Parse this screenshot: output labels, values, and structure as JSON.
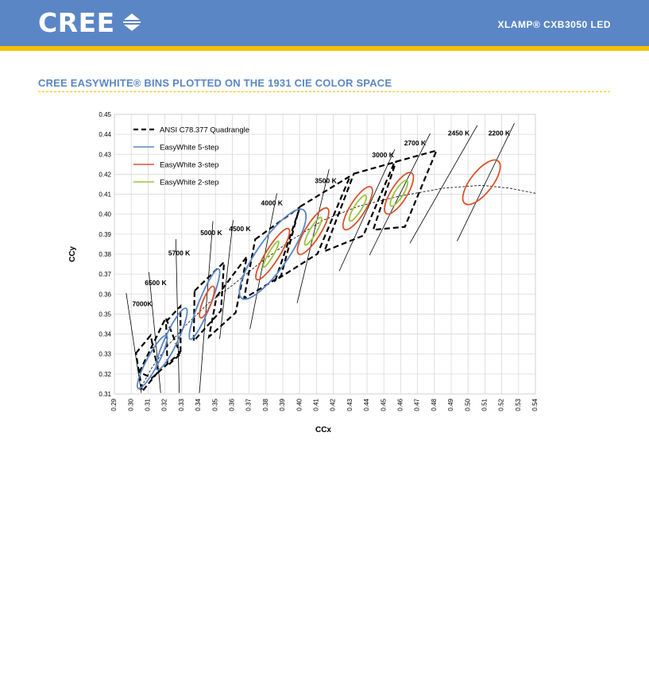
{
  "header": {
    "logo_text": "CREE",
    "logo_icon": "cree-arrows-icon",
    "product_title": "XLAMP® CXB3050 LED",
    "brand_color": "#5b86c5",
    "accent_color": "#f2c200"
  },
  "section": {
    "title": "CREE EASYWHITE® BINS PLOTTED ON THE 1931 CIE COLOR SPACE"
  },
  "chart_data": {
    "type": "scatter",
    "title": "",
    "xlabel": "CCx",
    "ylabel": "CCy",
    "xlim": [
      0.29,
      0.54
    ],
    "ylim": [
      0.31,
      0.45
    ],
    "grid": true,
    "legend_position": "top-left",
    "x_ticks": [
      "0.29",
      "0.30",
      "0.31",
      "0.32",
      "0.33",
      "0.34",
      "0.35",
      "0.36",
      "0.37",
      "0.38",
      "0.39",
      "0.40",
      "0.41",
      "0.42",
      "0.43",
      "0.44",
      "0.45",
      "0.46",
      "0.47",
      "0.48",
      "0.49",
      "0.50",
      "0.51",
      "0.52",
      "0.53",
      "0.54"
    ],
    "y_ticks": [
      "0.31",
      "0.32",
      "0.33",
      "0.34",
      "0.35",
      "0.36",
      "0.37",
      "0.38",
      "0.39",
      "0.40",
      "0.41",
      "0.42",
      "0.43",
      "0.44",
      "0.45"
    ],
    "legend": [
      {
        "label": "ANSI C78.377 Quadrangle",
        "color": "#000000",
        "style": "dashed"
      },
      {
        "label": "EasyWhite 5-step",
        "color": "#5b86c5",
        "style": "solid"
      },
      {
        "label": "EasyWhite 3-step",
        "color": "#d9532b",
        "style": "solid"
      },
      {
        "label": "EasyWhite 2-step",
        "color": "#9bc43c",
        "style": "solid"
      }
    ],
    "planckian_locus": [
      [
        0.305,
        0.312
      ],
      [
        0.3125,
        0.3235
      ],
      [
        0.3215,
        0.334
      ],
      [
        0.3325,
        0.3445
      ],
      [
        0.346,
        0.3555
      ],
      [
        0.361,
        0.365
      ],
      [
        0.377,
        0.376
      ],
      [
        0.395,
        0.387
      ],
      [
        0.414,
        0.397
      ],
      [
        0.435,
        0.404
      ],
      [
        0.459,
        0.409
      ],
      [
        0.485,
        0.413
      ],
      [
        0.508,
        0.4145
      ],
      [
        0.525,
        0.413
      ],
      [
        0.54,
        0.4105
      ]
    ],
    "cct_labels": [
      {
        "label": "7000K",
        "x": 0.3065,
        "y": 0.354,
        "line": [
          [
            0.297,
            0.3605
          ],
          [
            0.306,
            0.3105
          ]
        ]
      },
      {
        "label": "6500 K",
        "x": 0.3145,
        "y": 0.3645,
        "line": [
          [
            0.3105,
            0.371
          ],
          [
            0.3175,
            0.3105
          ]
        ]
      },
      {
        "label": "5700 K",
        "x": 0.3285,
        "y": 0.3795,
        "line": [
          [
            0.3265,
            0.3875
          ],
          [
            0.3285,
            0.3105
          ]
        ]
      },
      {
        "label": "5000 K",
        "x": 0.3475,
        "y": 0.3895,
        "line": [
          [
            0.3485,
            0.3965
          ],
          [
            0.3405,
            0.3105
          ]
        ]
      },
      {
        "label": "4500 K",
        "x": 0.3645,
        "y": 0.3915,
        "line": [
          [
            0.3605,
            0.397
          ],
          [
            0.3525,
            0.3375
          ]
        ]
      },
      {
        "label": "4000 K",
        "x": 0.3835,
        "y": 0.4045,
        "line": [
          [
            0.3865,
            0.4105
          ],
          [
            0.3705,
            0.3425
          ]
        ]
      },
      {
        "label": "3500 K",
        "x": 0.4155,
        "y": 0.4155,
        "line": [
          [
            0.4175,
            0.4225
          ],
          [
            0.3985,
            0.3555
          ]
        ]
      },
      {
        "label": "3000 K",
        "x": 0.4495,
        "y": 0.4285,
        "line": [
          [
            0.4565,
            0.4325
          ],
          [
            0.4235,
            0.3715
          ]
        ]
      },
      {
        "label": "2700 K",
        "x": 0.4685,
        "y": 0.4345,
        "line": [
          [
            0.4775,
            0.4405
          ],
          [
            0.4415,
            0.3795
          ]
        ]
      },
      {
        "label": "2450 K",
        "x": 0.4945,
        "y": 0.4395,
        "line": [
          [
            0.5055,
            0.4445
          ],
          [
            0.4655,
            0.3855
          ]
        ]
      },
      {
        "label": "2200 K",
        "x": 0.5185,
        "y": 0.4395,
        "line": [
          [
            0.5275,
            0.4455
          ],
          [
            0.4935,
            0.3865
          ]
        ]
      }
    ],
    "ansi_quadrangles": [
      [
        [
          0.3028,
          0.3304
        ],
        [
          0.3115,
          0.3393
        ],
        [
          0.3161,
          0.3212
        ],
        [
          0.3065,
          0.3113
        ]
      ],
      [
        [
          0.3048,
          0.3209
        ],
        [
          0.3205,
          0.3481
        ],
        [
          0.3289,
          0.3306
        ],
        [
          0.3123,
          0.318
        ]
      ],
      [
        [
          0.3207,
          0.3462
        ],
        [
          0.3292,
          0.3539
        ],
        [
          0.3293,
          0.3301
        ],
        [
          0.3215,
          0.3241
        ]
      ],
      [
        [
          0.3376,
          0.3616
        ],
        [
          0.3551,
          0.376
        ],
        [
          0.3533,
          0.3517
        ],
        [
          0.3371,
          0.3365
        ]
      ],
      [
        [
          0.3507,
          0.3588
        ],
        [
          0.3687,
          0.3788
        ],
        [
          0.362,
          0.3507
        ],
        [
          0.3462,
          0.3386
        ]
      ],
      [
        [
          0.3736,
          0.3874
        ],
        [
          0.3999,
          0.4034
        ],
        [
          0.3889,
          0.369
        ],
        [
          0.367,
          0.3578
        ]
      ],
      [
        [
          0.4003,
          0.4038
        ],
        [
          0.43,
          0.4191
        ],
        [
          0.4106,
          0.3802
        ],
        [
          0.3856,
          0.3669
        ]
      ],
      [
        [
          0.4322,
          0.4203
        ],
        [
          0.4563,
          0.426
        ],
        [
          0.4378,
          0.3893
        ],
        [
          0.4147,
          0.3814
        ]
      ],
      [
        [
          0.4572,
          0.4263
        ],
        [
          0.4813,
          0.4319
        ],
        [
          0.4625,
          0.3937
        ],
        [
          0.4437,
          0.3922
        ]
      ]
    ],
    "easywhite_5step": [
      {
        "cx": 0.3125,
        "cy": 0.326,
        "rx": 0.0035,
        "ry": 0.015,
        "angle": 28
      },
      {
        "cx": 0.324,
        "cy": 0.3375,
        "rx": 0.0038,
        "ry": 0.017,
        "angle": 25
      },
      {
        "cx": 0.3435,
        "cy": 0.355,
        "rx": 0.0035,
        "ry": 0.019,
        "angle": 22
      },
      {
        "cx": 0.384,
        "cy": 0.38,
        "rx": 0.009,
        "ry": 0.027,
        "angle": 35
      }
    ],
    "easywhite_3step": [
      {
        "cx": 0.345,
        "cy": 0.356,
        "rx": 0.0025,
        "ry": 0.0085,
        "angle": 22
      },
      {
        "cx": 0.384,
        "cy": 0.38,
        "rx": 0.004,
        "ry": 0.015,
        "angle": 32
      },
      {
        "cx": 0.408,
        "cy": 0.3915,
        "rx": 0.0045,
        "ry": 0.0135,
        "angle": 32
      },
      {
        "cx": 0.4345,
        "cy": 0.403,
        "rx": 0.0045,
        "ry": 0.0125,
        "angle": 32
      },
      {
        "cx": 0.459,
        "cy": 0.4105,
        "rx": 0.0048,
        "ry": 0.012,
        "angle": 32
      },
      {
        "cx": 0.508,
        "cy": 0.416,
        "rx": 0.0065,
        "ry": 0.0135,
        "angle": 38
      }
    ],
    "easywhite_2step": [
      {
        "cx": 0.383,
        "cy": 0.38,
        "rx": 0.0015,
        "ry": 0.0075,
        "angle": 30
      },
      {
        "cx": 0.408,
        "cy": 0.3915,
        "rx": 0.002,
        "ry": 0.008,
        "angle": 30
      },
      {
        "cx": 0.4345,
        "cy": 0.403,
        "rx": 0.0022,
        "ry": 0.0075,
        "angle": 32
      },
      {
        "cx": 0.459,
        "cy": 0.4105,
        "rx": 0.0025,
        "ry": 0.0075,
        "angle": 32
      }
    ]
  }
}
